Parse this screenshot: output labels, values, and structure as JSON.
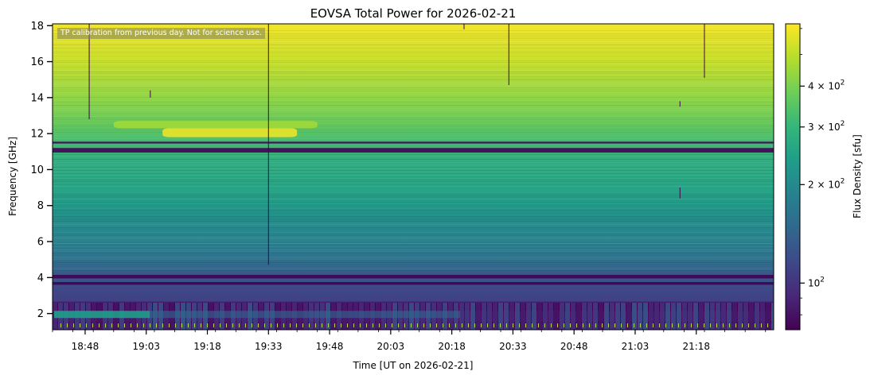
{
  "chart_data": {
    "type": "heatmap",
    "title": "EOVSA Total Power for 2026-02-21",
    "xlabel": "Time [UT on 2026-02-21]",
    "ylabel": "Frequency [GHz]",
    "x_range": [
      "18:40",
      "21:37"
    ],
    "x_ticks": [
      "18:48",
      "19:03",
      "19:18",
      "19:33",
      "19:48",
      "20:03",
      "20:18",
      "20:33",
      "20:48",
      "21:03",
      "21:18"
    ],
    "y_range": [
      1.1,
      18.1
    ],
    "y_ticks": [
      2,
      4,
      6,
      8,
      10,
      12,
      14,
      16,
      18
    ],
    "colorbar": {
      "label": "Flux Density [sfu]",
      "scale": "log",
      "range": [
        72,
        620
      ],
      "ticks": [
        {
          "value": 100,
          "base": "10",
          "exp": "2"
        },
        {
          "value": 200,
          "base": "2 × 10",
          "exp": "2"
        },
        {
          "value": 300,
          "base": "3 × 10",
          "exp": "2"
        },
        {
          "value": 400,
          "base": "4 × 10",
          "exp": "2"
        }
      ]
    },
    "annotation": "TP calibration from previous day. Not for science use.",
    "colormap": "viridis",
    "spectrum_profile": [
      {
        "freq": 1.1,
        "flux": 80
      },
      {
        "freq": 2.6,
        "flux": 80
      },
      {
        "freq": 2.7,
        "flux": 110
      },
      {
        "freq": 3.4,
        "flux": 115
      },
      {
        "freq": 4.0,
        "flux": 130
      },
      {
        "freq": 5.0,
        "flux": 160
      },
      {
        "freq": 6.0,
        "flux": 185
      },
      {
        "freq": 7.0,
        "flux": 205
      },
      {
        "freq": 8.0,
        "flux": 230
      },
      {
        "freq": 9.0,
        "flux": 255
      },
      {
        "freq": 10.5,
        "flux": 275
      },
      {
        "freq": 11.5,
        "flux": 320
      },
      {
        "freq": 12.5,
        "flux": 370
      },
      {
        "freq": 14.0,
        "flux": 430
      },
      {
        "freq": 16.0,
        "flux": 520
      },
      {
        "freq": 18.1,
        "flux": 600
      }
    ],
    "dark_bands_ghz": [
      [
        10.95,
        11.2
      ],
      [
        11.45,
        11.55
      ],
      [
        3.95,
        4.15
      ],
      [
        3.6,
        3.75
      ],
      [
        2.15,
        2.6
      ],
      [
        1.45,
        1.55
      ]
    ],
    "bright_features": [
      {
        "time_start": "19:07",
        "time_end": "19:40",
        "freq_low": 11.8,
        "freq_high": 12.3,
        "flux": 600
      },
      {
        "time_start": "18:55",
        "time_end": "19:45",
        "freq_low": 12.3,
        "freq_high": 12.7,
        "flux": 460
      }
    ]
  },
  "colors": {
    "viridis": [
      "#440154",
      "#482878",
      "#3e4989",
      "#31688e",
      "#26828e",
      "#1f9e89",
      "#35b779",
      "#6ece58",
      "#b5de2b",
      "#fde725"
    ]
  }
}
